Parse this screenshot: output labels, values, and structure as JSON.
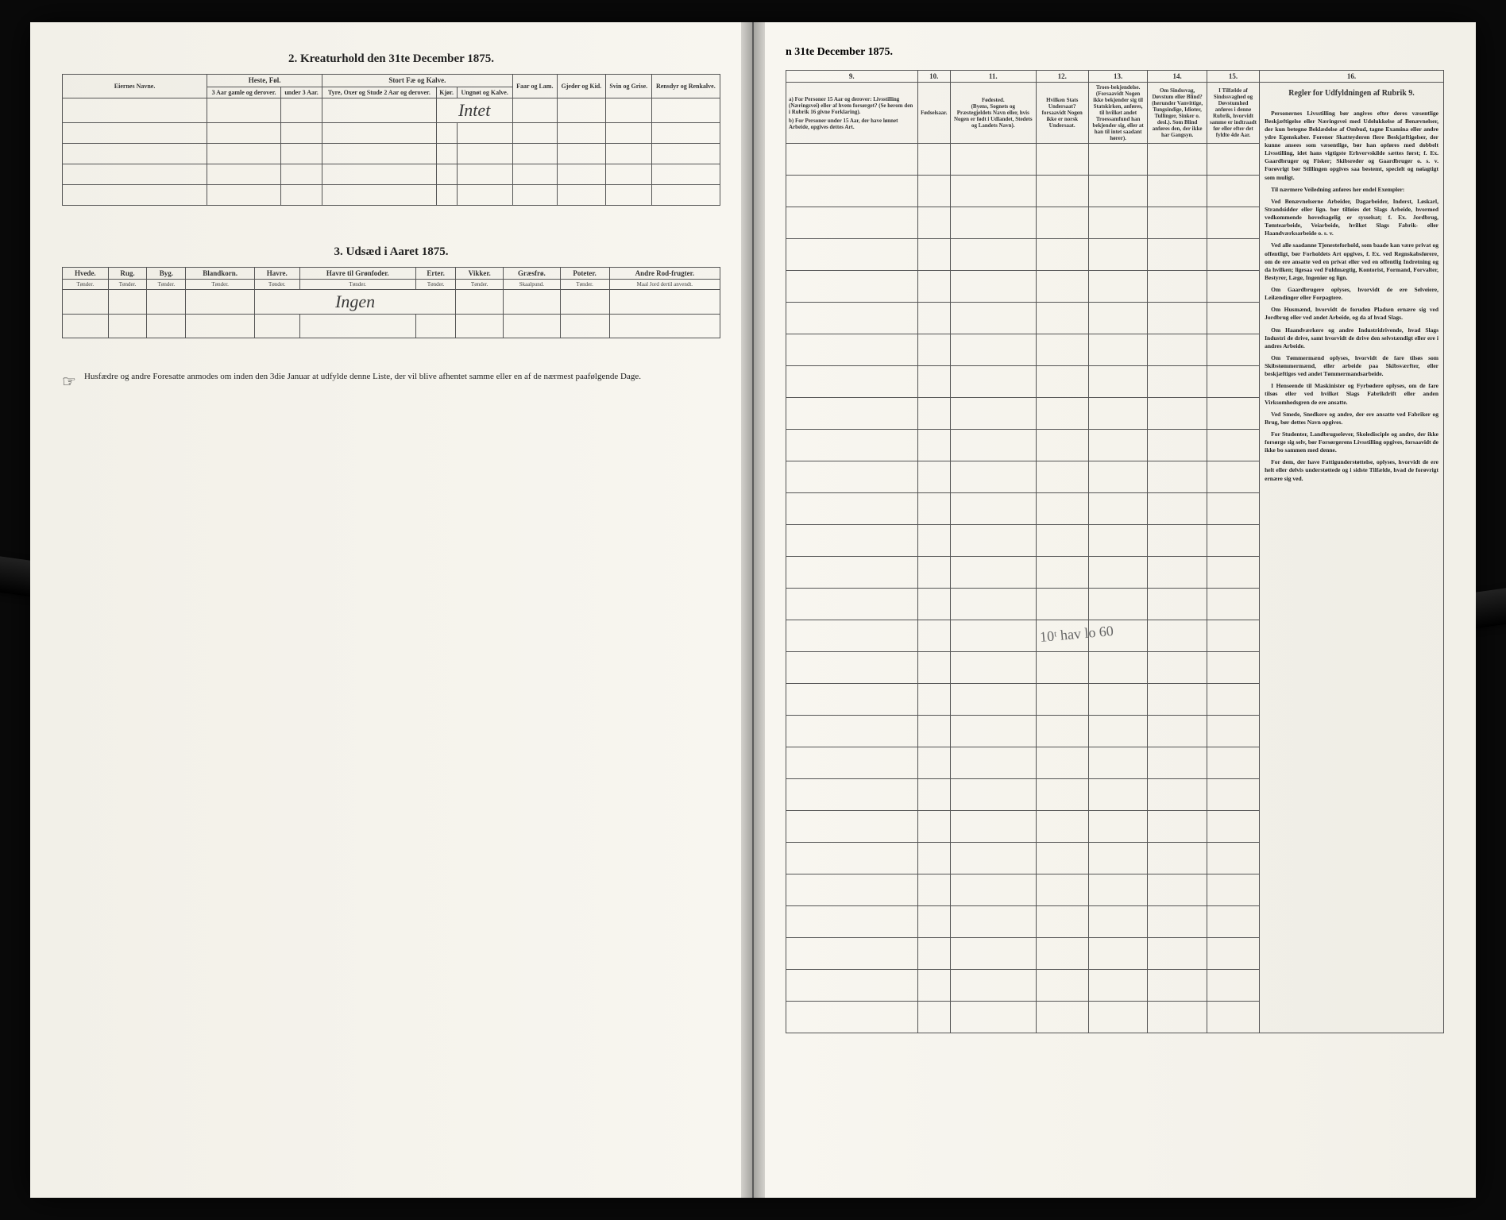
{
  "left": {
    "section2_title": "2.  Kreaturhold den 31te December 1875.",
    "section3_title": "3.  Udsæd i Aaret 1875.",
    "t2": {
      "col_eier": "Eiernes Navne.",
      "grp_heste": "Heste, Føl.",
      "heste_a": "3 Aar gamle og derover.",
      "heste_b": "under 3 Aar.",
      "grp_stort": "Stort Fæ og Kalve.",
      "stort_a": "Tyre, Oxer og Stude 2 Aar og derover.",
      "stort_b": "Kjør.",
      "stort_c": "Ungnøt og Kalve.",
      "faar": "Faar og Lam.",
      "gjeder": "Gjeder og Kid.",
      "svin": "Svin og Grise.",
      "ren": "Rensdyr og Renkalve.",
      "hand1": "Intet"
    },
    "t3": {
      "hvede": "Hvede.",
      "rug": "Rug.",
      "byg": "Byg.",
      "bland": "Blandkorn.",
      "havre": "Havre.",
      "havreg": "Havre til Grønfoder.",
      "erter": "Erter.",
      "vikker": "Vikker.",
      "gras": "Græsfrø.",
      "poteter": "Poteter.",
      "andre": "Andre Rod-frugter.",
      "u_tonder": "Tønder.",
      "u_skaal": "Skaalpund.",
      "u_maal": "Maal Jord dertil anvendt.",
      "hand2": "Ingen"
    },
    "footnote": "Husfædre og andre Foresatte anmodes om inden den 3die Januar at udfylde denne Liste, der vil blive afhentet samme eller en af de nærmest paafølgende Dage."
  },
  "right": {
    "top": "n 31te December 1875.",
    "cols": {
      "n9": "9.",
      "n10": "10.",
      "n11": "11.",
      "n12": "12.",
      "n13": "13.",
      "n14": "14.",
      "n15": "15.",
      "n16": "16."
    },
    "h9a": "For Personer 15 Aar og derover: Livsstilling (Næringsvei) eller af hvem forsørget? (Se herom den i Rubrik 16 givne Forklaring).",
    "h9b": "For Personer under 15 Aar, der have lønnet Arbeide, opgives dettes Art.",
    "h10": "Fødselsaar.",
    "h11t": "Fødested.",
    "h11": "(Byens, Sognets og Præstegjeldets Navn eller, hvis Nogen er født i Udlandet, Stedets og Landets Navn).",
    "h12t": "Hvilken Stats Undersaat?",
    "h12": "forsaavidt Nogen ikke er norsk Undersaat.",
    "h13t": "Troes-bekjendelse.",
    "h13": "(Forsaavidt Nogen ikke bekjender sig til Statskirken, anføres, til hvilket andet Troessamfund han bekjender sig, eller at han til intet saadant hører).",
    "h14t": "Om Sindssvag, Døvstum eller Blind?",
    "h14": "(herunder Vanvittige, Tungsindige, Idioter, Tullinger, Sinker o. desl.). Som Blind anføres den, der ikke har Gangsyn.",
    "h15t": "I Tilfælde af Sindssvaghed og Døvstumhed",
    "h15": "anføres i denne Rubrik, hvorvidt samme er indtraadt før eller efter det fyldte 4de Aar.",
    "h16t": "Regler for Udfyldningen af Rubrik 9.",
    "rules": [
      "Personernes Livsstilling bør angives efter deres væsentlige Beskjæftigelse eller Næringsvei med Udelukkelse af Benævnelser, der kun betegne Beklædelse af Ombud, tagne Examina eller andre ydre Egenskaber. Forener Skatteyderen flere Beskjæftigelser, der kunne ansees som væsentlige, bør han opføres med dobbelt Livsstilling, idet hans vigtigste Erhvervskilde sættes først; f. Ex. Gaardbruger og Fisker; Skibsreder og Gaardbruger o. s. v. Forøvrigt bør Stillingen opgives saa bestemt, specielt og nøiagtigt som muligt.",
      "Til nærmere Veiledning anføres her endel Exempler:",
      "Ved Benævnelserne Arbeider, Dagarbeider, Inderst, Løskarl, Strandsidder eller lign. bør tilføies det Slags Arbeide, hvormed vedkommende hovedsagelig er sysselsat; f. Ex. Jordbrug, Tømtearbeide, Veiarbeide, hvilket Slags Fabrik- eller Haandværksarbeide o. s. v.",
      "Ved alle saadanne Tjenesteforhold, som baade kan være privat og offentligt, bør Forholdets Art opgives, f. Ex. ved Regnskabsførere, om de ere ansatte ved en privat eller ved en offentlig Indretning og da hvilken; ligesaa ved Fuldmægtig, Kontorist, Formand, Forvalter, Bestyrer, Læge, Ingeniør og lign.",
      "Om Gaardbrugere oplyses, hvorvidt de ere Selveiere, Leilændinger eller Forpagtere.",
      "Om Husmænd, hvorvidt de foruden Pladsen ernære sig ved Jordbrug eller ved andet Arbeide, og da af hvad Slags.",
      "Om Haandværkere og andre Industridrivende, hvad Slags Industri de drive, samt hvorvidt de drive den selvstændigt eller ere i andres Arbeide.",
      "Om Tømmermænd oplyses, hvorvidt de fare tilsøs som Skibstømmermænd, eller arbeide paa Skibsværfter, eller beskjæftiges ved andet Tømmermandsarbeide.",
      "I Henseende til Maskinister og Fyrbødere oplyses, om de fare tilsøs eller ved hvilket Slags Fabrikdrift eller anden Virksomhedsgren de ere ansatte.",
      "Ved Smede, Snedkere og andre, der ere ansatte ved Fabriker og Brug, bør dettes Navn opgives.",
      "For Studenter, Landbrugselever, Skoledisciple og andre, der ikke forsørge sig selv, bør Forsørgerens Livsstilling opgives, forsaavidt de ikke bo sammen med denne.",
      "For dem, der have Fattigunderstøttelse, oplyses, hvorvidt de ere helt eller delvis understøttede og i sidste Tilfælde, hvad de forøvrigt ernære sig ved."
    ],
    "scrawl": "10ᵗ hav lo 60"
  }
}
